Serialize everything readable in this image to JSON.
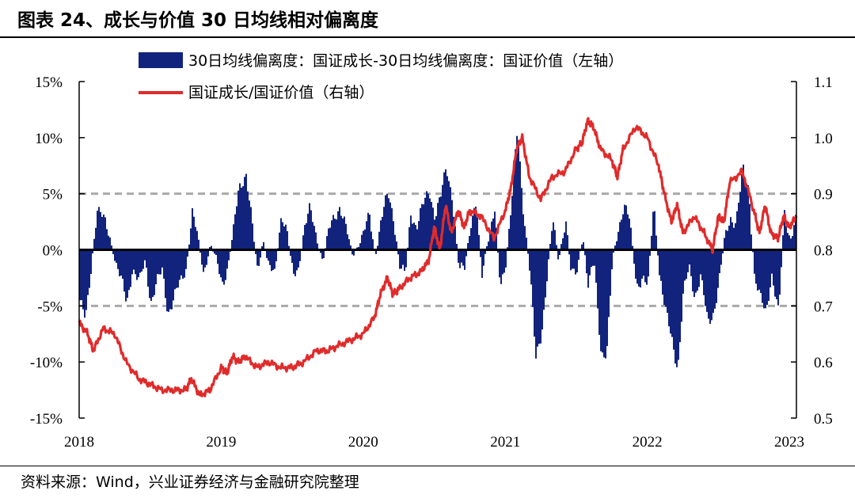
{
  "header": {
    "title": "图表 24、成长与价值 30 日均线相对偏离度"
  },
  "footer": {
    "source": "资料来源：Wind，兴业证券经济与金融研究院整理"
  },
  "colors": {
    "bar": "#12237d",
    "line": "#e02b2b",
    "reference": "#a9a9a9",
    "axis": "#000000"
  },
  "chart_data": {
    "type": "bar+line",
    "title": "成长与价值 30 日均线相对偏离度",
    "x_ticks": [
      "2018",
      "2019",
      "2020",
      "2021",
      "2022",
      "2023"
    ],
    "x_range": [
      2018.0,
      2023.05
    ],
    "y_left": {
      "label": "30日均线偏离度：国证成长-30日均线偏离度：国证价值（左轴）",
      "range": [
        -15,
        15
      ],
      "ticks": [
        15,
        10,
        5,
        0,
        -5,
        -10,
        -15
      ],
      "tick_labels": [
        "15%",
        "10%",
        "5%",
        "0%",
        "-5%",
        "-10%",
        "-15%"
      ]
    },
    "y_right": {
      "label": "国证成长/国证价值（右轴）",
      "range": [
        0.5,
        1.1
      ],
      "ticks": [
        1.1,
        1.0,
        0.9,
        0.8,
        0.7,
        0.6,
        0.5
      ],
      "tick_labels": [
        "1.1",
        "1.0",
        "0.9",
        "0.8",
        "0.7",
        "0.6",
        "0.5"
      ]
    },
    "reference_lines_left_axis": [
      5,
      -5
    ],
    "legend": [
      {
        "type": "bar",
        "label": "30日均线偏离度：国证成长-30日均线偏离度：国证价值（左轴）"
      },
      {
        "type": "line",
        "label": "国证成长/国证价值（右轴）"
      }
    ],
    "bar_series": {
      "name": "30日均线偏离度：国证成长-30日均线偏离度：国证价值（左轴）",
      "axis": "left",
      "x": [
        2018.0,
        2018.04,
        2018.08,
        2018.12,
        2018.17,
        2018.21,
        2018.25,
        2018.29,
        2018.33,
        2018.37,
        2018.42,
        2018.46,
        2018.5,
        2018.54,
        2018.58,
        2018.62,
        2018.67,
        2018.71,
        2018.75,
        2018.79,
        2018.83,
        2018.87,
        2018.92,
        2018.96,
        2019.0,
        2019.04,
        2019.08,
        2019.12,
        2019.17,
        2019.21,
        2019.25,
        2019.29,
        2019.33,
        2019.37,
        2019.42,
        2019.46,
        2019.5,
        2019.54,
        2019.58,
        2019.62,
        2019.67,
        2019.71,
        2019.75,
        2019.79,
        2019.83,
        2019.87,
        2019.92,
        2019.96,
        2020.0,
        2020.04,
        2020.08,
        2020.12,
        2020.17,
        2020.21,
        2020.25,
        2020.29,
        2020.33,
        2020.37,
        2020.42,
        2020.46,
        2020.5,
        2020.54,
        2020.58,
        2020.62,
        2020.67,
        2020.71,
        2020.75,
        2020.79,
        2020.83,
        2020.87,
        2020.92,
        2020.96,
        2021.0,
        2021.04,
        2021.08,
        2021.12,
        2021.17,
        2021.21,
        2021.25,
        2021.29,
        2021.33,
        2021.37,
        2021.42,
        2021.46,
        2021.5,
        2021.54,
        2021.58,
        2021.62,
        2021.67,
        2021.71,
        2021.75,
        2021.79,
        2021.83,
        2021.87,
        2021.92,
        2021.96,
        2022.0,
        2022.04,
        2022.08,
        2022.12,
        2022.17,
        2022.21,
        2022.25,
        2022.29,
        2022.33,
        2022.37,
        2022.42,
        2022.46,
        2022.5,
        2022.54,
        2022.58,
        2022.62,
        2022.67,
        2022.71,
        2022.75,
        2022.79,
        2022.83,
        2022.87,
        2022.92,
        2022.96,
        2023.0,
        2023.04
      ],
      "values": [
        -4.5,
        -6.5,
        -1.5,
        3.8,
        2.5,
        1.2,
        -1.0,
        -2.8,
        -4.8,
        -1.5,
        -3.0,
        -1.0,
        -4.5,
        -3.0,
        -2.0,
        -5.5,
        -4.0,
        -3.0,
        -1.5,
        3.5,
        1.0,
        -2.0,
        0.5,
        -1.0,
        -3.0,
        -1.5,
        1.5,
        5.5,
        7.0,
        2.5,
        -2.0,
        1.0,
        -1.5,
        -2.5,
        3.5,
        1.5,
        -2.5,
        -1.5,
        2.0,
        3.5,
        1.0,
        -1.0,
        1.5,
        3.0,
        4.0,
        2.0,
        -0.5,
        0.5,
        1.5,
        3.0,
        -0.5,
        2.5,
        5.0,
        3.0,
        -1.5,
        -2.5,
        3.5,
        2.0,
        4.0,
        5.5,
        3.0,
        4.5,
        7.5,
        5.0,
        -2.0,
        -1.5,
        2.5,
        4.0,
        -2.5,
        1.0,
        3.5,
        -3.5,
        -1.0,
        4.5,
        10.5,
        4.0,
        -2.0,
        -10.0,
        -7.5,
        -2.0,
        2.5,
        -1.0,
        3.0,
        -2.5,
        -2.0,
        1.5,
        -3.5,
        -1.0,
        -9.0,
        -9.5,
        -1.0,
        2.0,
        4.0,
        2.5,
        -3.0,
        -2.5,
        -3.5,
        4.5,
        -2.0,
        -5.5,
        -8.0,
        -10.5,
        -4.0,
        -1.5,
        -4.0,
        -2.5,
        -6.5,
        -5.5,
        -3.0,
        1.0,
        3.0,
        2.5,
        7.0,
        5.5,
        -2.5,
        -4.5,
        -5.5,
        -2.0,
        -6.0,
        3.5,
        1.0,
        2.5
      ]
    },
    "line_series": {
      "name": "国证成长/国证价值（右轴）",
      "axis": "right",
      "x": [
        2018.0,
        2018.06,
        2018.1,
        2018.17,
        2018.25,
        2018.33,
        2018.42,
        2018.5,
        2018.58,
        2018.67,
        2018.75,
        2018.79,
        2018.85,
        2018.92,
        2019.0,
        2019.04,
        2019.08,
        2019.12,
        2019.17,
        2019.25,
        2019.33,
        2019.42,
        2019.5,
        2019.58,
        2019.67,
        2019.75,
        2019.83,
        2019.92,
        2020.0,
        2020.08,
        2020.12,
        2020.17,
        2020.21,
        2020.25,
        2020.33,
        2020.4,
        2020.46,
        2020.5,
        2020.54,
        2020.58,
        2020.62,
        2020.67,
        2020.71,
        2020.75,
        2020.83,
        2020.92,
        2021.0,
        2021.04,
        2021.08,
        2021.12,
        2021.17,
        2021.25,
        2021.33,
        2021.42,
        2021.5,
        2021.54,
        2021.58,
        2021.62,
        2021.67,
        2021.75,
        2021.79,
        2021.83,
        2021.92,
        2022.0,
        2022.08,
        2022.12,
        2022.17,
        2022.21,
        2022.25,
        2022.33,
        2022.4,
        2022.46,
        2022.5,
        2022.54,
        2022.58,
        2022.67,
        2022.75,
        2022.79,
        2022.83,
        2022.87,
        2022.92,
        2022.96,
        2023.0,
        2023.05
      ],
      "values": [
        0.67,
        0.65,
        0.62,
        0.66,
        0.65,
        0.6,
        0.57,
        0.56,
        0.55,
        0.55,
        0.55,
        0.57,
        0.54,
        0.55,
        0.59,
        0.58,
        0.61,
        0.6,
        0.61,
        0.59,
        0.6,
        0.59,
        0.59,
        0.6,
        0.62,
        0.62,
        0.63,
        0.64,
        0.65,
        0.68,
        0.72,
        0.75,
        0.72,
        0.73,
        0.75,
        0.76,
        0.78,
        0.84,
        0.8,
        0.88,
        0.83,
        0.87,
        0.84,
        0.87,
        0.86,
        0.82,
        0.87,
        0.91,
        0.98,
        1.0,
        0.93,
        0.89,
        0.93,
        0.94,
        0.98,
        0.99,
        1.03,
        1.02,
        0.98,
        0.96,
        0.93,
        0.98,
        1.02,
        1.0,
        0.95,
        0.9,
        0.85,
        0.88,
        0.83,
        0.86,
        0.83,
        0.8,
        0.86,
        0.85,
        0.92,
        0.94,
        0.87,
        0.83,
        0.88,
        0.83,
        0.82,
        0.86,
        0.84,
        0.86
      ]
    }
  }
}
